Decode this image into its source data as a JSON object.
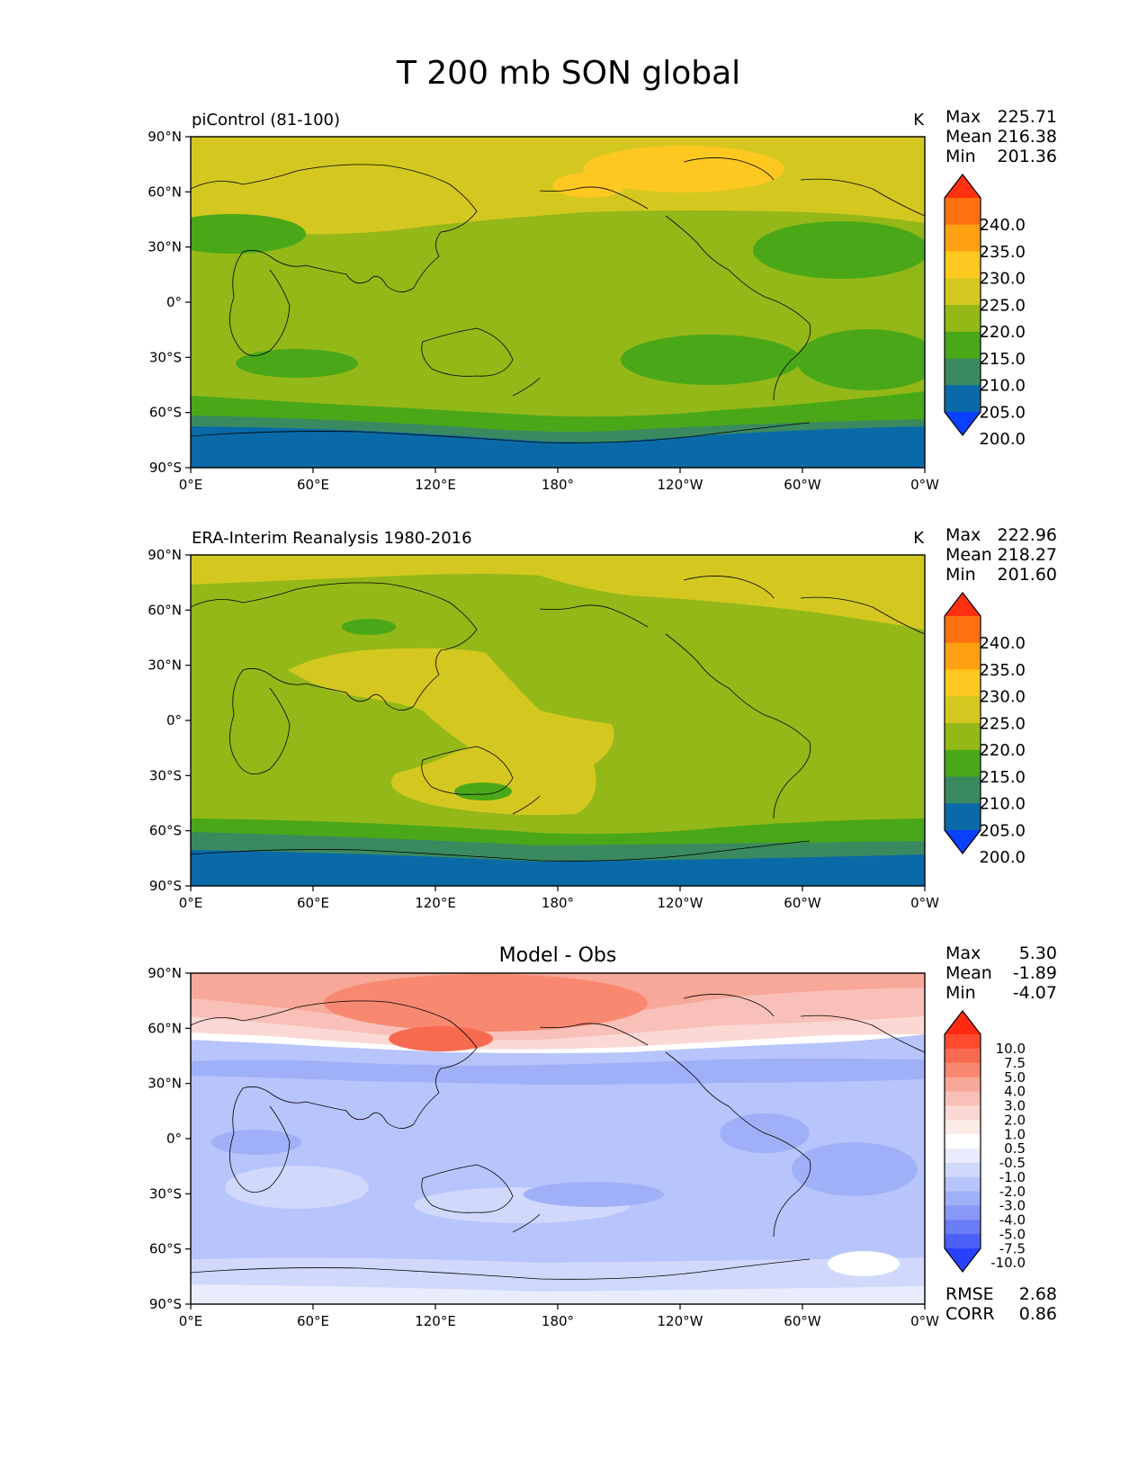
{
  "title": "T 200 mb SON global",
  "x_tick_labels": [
    "0°E",
    "60°E",
    "120°E",
    "180°",
    "120°W",
    "60°W",
    "0°W"
  ],
  "y_tick_labels": [
    "90°N",
    "60°N",
    "30°N",
    "0°",
    "30°S",
    "60°S",
    "90°S"
  ],
  "panels": [
    {
      "id": "model",
      "title_left": "piControl (81-100)",
      "title_center": "",
      "units": "K",
      "stats": [
        {
          "label": "Max",
          "value": "225.71"
        },
        {
          "label": "Mean",
          "value": "216.38"
        },
        {
          "label": "Min",
          "value": "201.36"
        }
      ],
      "extra_stats": [],
      "colorbar": {
        "labels": [
          "240.0",
          "235.0",
          "230.0",
          "225.0",
          "220.0",
          "215.0",
          "210.0",
          "205.0",
          "200.0"
        ],
        "colors": [
          "#ff3010",
          "#ff7010",
          "#ffa010",
          "#ffc820",
          "#d4c820",
          "#94b818",
          "#4aa818",
          "#3a8a60",
          "#0a6aa8",
          "#0a40ff"
        ]
      }
    },
    {
      "id": "obs",
      "title_left": "ERA-Interim Reanalysis 1980-2016",
      "title_center": "",
      "units": "K",
      "stats": [
        {
          "label": "Max",
          "value": "222.96"
        },
        {
          "label": "Mean",
          "value": "218.27"
        },
        {
          "label": "Min",
          "value": "201.60"
        }
      ],
      "extra_stats": [],
      "colorbar": {
        "labels": [
          "240.0",
          "235.0",
          "230.0",
          "225.0",
          "220.0",
          "215.0",
          "210.0",
          "205.0",
          "200.0"
        ],
        "colors": [
          "#ff3010",
          "#ff7010",
          "#ffa010",
          "#ffc820",
          "#d4c820",
          "#94b818",
          "#4aa818",
          "#3a8a60",
          "#0a6aa8",
          "#0a40ff"
        ]
      }
    },
    {
      "id": "diff",
      "title_left": "",
      "title_center": "Model - Obs",
      "units": "",
      "stats": [
        {
          "label": "Max",
          "value": "5.30"
        },
        {
          "label": "Mean",
          "value": "-1.89"
        },
        {
          "label": "Min",
          "value": "-4.07"
        }
      ],
      "extra_stats": [
        {
          "label": "RMSE",
          "value": "2.68"
        },
        {
          "label": "CORR",
          "value": "0.86"
        }
      ],
      "colorbar": {
        "labels": [
          "10.0",
          "7.5",
          "5.0",
          "4.0",
          "3.0",
          "2.0",
          "1.0",
          "0.5",
          "-0.5",
          "-1.0",
          "-2.0",
          "-3.0",
          "-4.0",
          "-5.0",
          "-7.5",
          "-10.0"
        ],
        "colors": [
          "#ff2a10",
          "#ff4a30",
          "#f86a50",
          "#f88870",
          "#f8a898",
          "#f8c0b8",
          "#fcd8d4",
          "#fcece8",
          "#ffffff",
          "#e8ecfc",
          "#d0d8fc",
          "#b8c4fc",
          "#a0b0f8",
          "#8898f8",
          "#6a7cf6",
          "#4a60f6",
          "#2a40ff"
        ]
      }
    }
  ],
  "chart_data": [
    {
      "type": "heatmap",
      "title": "piControl (81-100)",
      "units": "K",
      "xlim": [
        0,
        360
      ],
      "ylim": [
        -90,
        90
      ],
      "x_ticks": [
        0,
        60,
        120,
        180,
        240,
        300,
        360
      ],
      "y_ticks": [
        90,
        60,
        30,
        0,
        -30,
        -60,
        -90
      ],
      "levels": [
        200,
        205,
        210,
        215,
        220,
        225,
        230,
        235,
        240
      ],
      "stats": {
        "max": 225.71,
        "mean": 216.38,
        "min": 201.36
      },
      "field_summary": [
        {
          "lat": 82.5,
          "value": 222.5
        },
        {
          "lat": 70,
          "value": 220
        },
        {
          "lat": 45,
          "value": 217.5
        },
        {
          "lat": 15,
          "value": 217.5
        },
        {
          "lat": -15,
          "value": 217.5
        },
        {
          "lat": -35,
          "value": 216
        },
        {
          "lat": -55,
          "value": 214
        },
        {
          "lat": -63,
          "value": 208
        },
        {
          "lat": -80,
          "value": 203
        }
      ],
      "features": [
        {
          "label": "warm",
          "lon": 195,
          "lat": 72,
          "value": 225
        },
        {
          "label": "cool",
          "lon": 325,
          "lat": 30,
          "value": 213
        },
        {
          "label": "cool",
          "lon": 40,
          "lat": 38,
          "value": 213
        },
        {
          "label": "cool",
          "lon": 255,
          "lat": -30,
          "value": 213
        },
        {
          "label": "cool",
          "lon": 335,
          "lat": -30,
          "value": 213
        },
        {
          "label": "cool",
          "lon": 50,
          "lat": -33,
          "value": 213
        }
      ]
    },
    {
      "type": "heatmap",
      "title": "ERA-Interim Reanalysis 1980-2016",
      "units": "K",
      "xlim": [
        0,
        360
      ],
      "ylim": [
        -90,
        90
      ],
      "x_ticks": [
        0,
        60,
        120,
        180,
        240,
        300,
        360
      ],
      "y_ticks": [
        90,
        60,
        30,
        0,
        -30,
        -60,
        -90
      ],
      "levels": [
        200,
        205,
        210,
        215,
        220,
        225,
        230,
        235,
        240
      ],
      "stats": {
        "max": 222.96,
        "mean": 218.27,
        "min": 201.6
      },
      "field_summary": [
        {
          "lat": 75,
          "value": 221
        },
        {
          "lat": 50,
          "value": 218
        },
        {
          "lat": 20,
          "value": 218
        },
        {
          "lat": 0,
          "value": 218
        },
        {
          "lat": -25,
          "value": 219
        },
        {
          "lat": -52,
          "value": 216
        },
        {
          "lat": -63,
          "value": 212
        },
        {
          "lat": -80,
          "value": 204
        }
      ],
      "features": [
        {
          "label": "warm",
          "lon": 120,
          "lat": 20,
          "value": 221
        },
        {
          "label": "warm",
          "lon": 150,
          "lat": -30,
          "value": 221
        },
        {
          "label": "cool",
          "lon": 85,
          "lat": 52,
          "value": 213
        },
        {
          "label": "cool",
          "lon": 140,
          "lat": -37,
          "value": 213
        }
      ]
    },
    {
      "type": "heatmap",
      "title": "Model - Obs",
      "units": "",
      "xlim": [
        0,
        360
      ],
      "ylim": [
        -90,
        90
      ],
      "x_ticks": [
        0,
        60,
        120,
        180,
        240,
        300,
        360
      ],
      "y_ticks": [
        90,
        60,
        30,
        0,
        -30,
        -60,
        -90
      ],
      "levels": [
        -10,
        -7.5,
        -5,
        -4,
        -3,
        -2,
        -1,
        -0.5,
        0.5,
        1,
        2,
        3,
        4,
        5,
        7.5,
        10
      ],
      "stats": {
        "max": 5.3,
        "mean": -1.89,
        "min": -4.07,
        "rmse": 2.68,
        "corr": 0.86
      },
      "field_summary": [
        {
          "lat": 80,
          "value": 2.5
        },
        {
          "lat": 65,
          "value": 2.5
        },
        {
          "lat": 52,
          "value": 0
        },
        {
          "lat": 40,
          "value": -2.5
        },
        {
          "lat": 15,
          "value": -2.5
        },
        {
          "lat": -15,
          "value": -2.5
        },
        {
          "lat": -40,
          "value": -2.2
        },
        {
          "lat": -60,
          "value": -1.5
        },
        {
          "lat": -80,
          "value": -0.8
        }
      ],
      "features": [
        {
          "label": "warm",
          "lon": 120,
          "lat": 63,
          "value": 4.5
        },
        {
          "label": "warm",
          "lon": 180,
          "lat": 75,
          "value": 3.5
        },
        {
          "label": "cool",
          "lon": 200,
          "lat": -30,
          "value": -4
        },
        {
          "label": "cool",
          "lon": 300,
          "lat": -20,
          "value": -3.5
        },
        {
          "label": "near-zero",
          "lon": 300,
          "lat": -68,
          "value": 0
        }
      ]
    }
  ]
}
